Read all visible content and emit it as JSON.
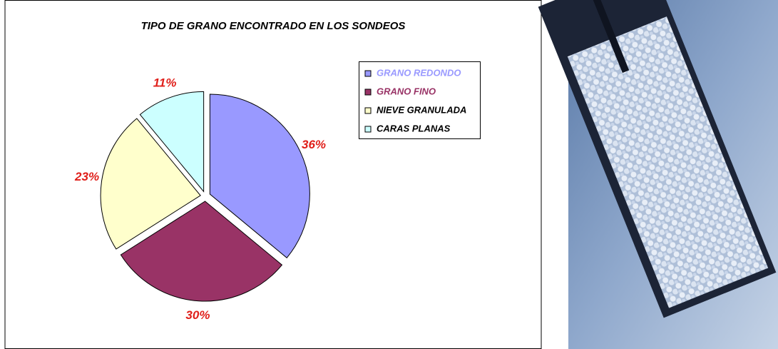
{
  "chart_data": {
    "type": "pie",
    "title": "TIPO DE GRANO ENCONTRADO EN LOS SONDEOS",
    "categories": [
      "GRANO REDONDO",
      "GRANO FINO",
      "NIEVE GRANULADA",
      "CARAS PLANAS"
    ],
    "values": [
      36,
      30,
      23,
      11
    ],
    "value_labels": [
      "36%",
      "30%",
      "23%",
      "11%"
    ],
    "colors": [
      "#9999ff",
      "#993366",
      "#ffffcc",
      "#ccffff"
    ],
    "legend_text_colors": [
      "#9999ff",
      "#993366",
      "#000000",
      "#000000"
    ],
    "legend": "right"
  }
}
